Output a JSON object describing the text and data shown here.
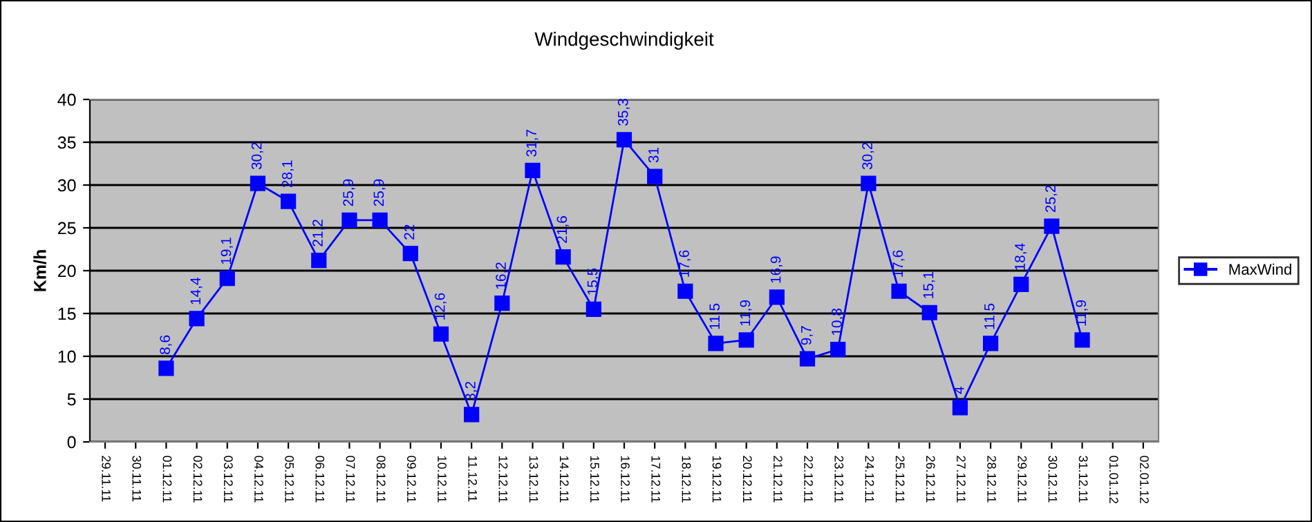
{
  "chart_data": {
    "type": "line",
    "title": "Windgeschwindigkeit",
    "ylabel": "Km/h",
    "categories": [
      "29.11.11",
      "30.11.11",
      "01.12.11",
      "02.12.11",
      "03.12.11",
      "04.12.11",
      "05.12.11",
      "06.12.11",
      "07.12.11",
      "08.12.11",
      "09.12.11",
      "10.12.11",
      "11.12.11",
      "12.12.11",
      "13.12.11",
      "14.12.11",
      "15.12.11",
      "16.12.11",
      "17.12.11",
      "18.12.11",
      "19.12.11",
      "20.12.11",
      "21.12.11",
      "22.12.11",
      "23.12.11",
      "24.12.11",
      "25.12.11",
      "26.12.11",
      "27.12.11",
      "28.12.11",
      "29.12.11",
      "30.12.11",
      "31.12.11",
      "01.01.12",
      "02.01.12"
    ],
    "series": [
      {
        "name": "MaxWind",
        "color": "#0000ff",
        "values": [
          null,
          null,
          8.6,
          14.4,
          19.1,
          30.2,
          28.1,
          21.2,
          25.9,
          25.9,
          22,
          12.6,
          3.2,
          16.2,
          31.7,
          21.6,
          15.5,
          35.3,
          31,
          17.6,
          11.5,
          11.9,
          16.9,
          9.7,
          10.8,
          30.2,
          17.6,
          15.1,
          4,
          11.5,
          18.4,
          25.2,
          11.9,
          null,
          null
        ],
        "value_labels": [
          null,
          null,
          "8,6",
          "14,4",
          "19,1",
          "30,2",
          "28,1",
          "21,2",
          "25,9",
          "25,9",
          "22",
          "12,6",
          "3,2",
          "16,2",
          "31,7",
          "21,6",
          "15,5",
          "35,3",
          "31",
          "17,6",
          "11,5",
          "11,9",
          "16,9",
          "9,7",
          "10,8",
          "30,2",
          "17,6",
          "15,1",
          "4",
          "11,5",
          "18,4",
          "25,2",
          "11,9",
          null,
          null
        ]
      }
    ],
    "ylim": [
      0,
      40
    ],
    "yticks": [
      0,
      5,
      10,
      15,
      20,
      25,
      30,
      35,
      40
    ],
    "grid": "y",
    "legend": "right",
    "marker": "square",
    "line_style": "solid"
  }
}
